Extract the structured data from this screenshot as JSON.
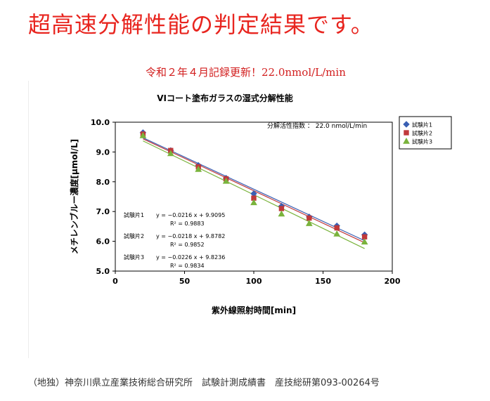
{
  "headline": "超高速分解性能の判定結果です。",
  "subtitle": "令和２年４月記録更新！22.0nmol/L/min",
  "footer": "（地独）神奈川県立産業技術総合研究所　試験計測成績書　産技総研第093-00264号",
  "colors": {
    "headline": "#e8251f",
    "subtitle": "#d21e1e"
  },
  "chart_data": {
    "type": "scatter",
    "title": "VIコート塗布ガラスの湿式分解性能",
    "xlabel": "紫外線照射時間[min]",
    "ylabel": "メチレンブルー濃度[μmol/L]",
    "xlim": [
      0,
      200
    ],
    "ylim": [
      5.0,
      10.0
    ],
    "xticks": [
      "0",
      "50",
      "100",
      "150",
      "200"
    ],
    "yticks": [
      "5.0",
      "6.0",
      "7.0",
      "8.0",
      "9.0",
      "10.0"
    ],
    "grid": false,
    "legend_position": "top-right",
    "annotation": "分解活性指数 ： 22.0 nmol/L/min",
    "series": [
      {
        "name": "試験片1",
        "marker": "diamond",
        "color": "#3a5fb3",
        "x": [
          20,
          40,
          60,
          80,
          100,
          120,
          140,
          160,
          180
        ],
        "y": [
          9.65,
          9.05,
          8.55,
          8.12,
          7.6,
          7.18,
          6.82,
          6.52,
          6.22
        ],
        "trend": {
          "slope": -0.0216,
          "intercept": 9.9095
        },
        "equation": "y = −0.0216 x + 9.9095",
        "r2": "R² = 0.9883"
      },
      {
        "name": "試験片2",
        "marker": "square",
        "color": "#c0393b",
        "x": [
          20,
          40,
          60,
          80,
          100,
          120,
          140,
          160,
          180
        ],
        "y": [
          9.6,
          9.05,
          8.5,
          8.1,
          7.45,
          7.1,
          6.78,
          6.45,
          6.15
        ],
        "trend": {
          "slope": -0.0218,
          "intercept": 9.8782
        },
        "equation": "y = −0.0218 x + 9.8782",
        "r2": "R² = 0.9852"
      },
      {
        "name": "試験片3",
        "marker": "triangle",
        "color": "#7ab33c",
        "x": [
          20,
          40,
          60,
          80,
          100,
          120,
          140,
          160,
          180
        ],
        "y": [
          9.55,
          8.95,
          8.42,
          8.02,
          7.3,
          6.92,
          6.6,
          6.25,
          5.98
        ],
        "trend": {
          "slope": -0.0226,
          "intercept": 9.8236
        },
        "equation": "y = −0.0226 x + 9.8236",
        "r2": "R² = 0.9834"
      }
    ]
  }
}
